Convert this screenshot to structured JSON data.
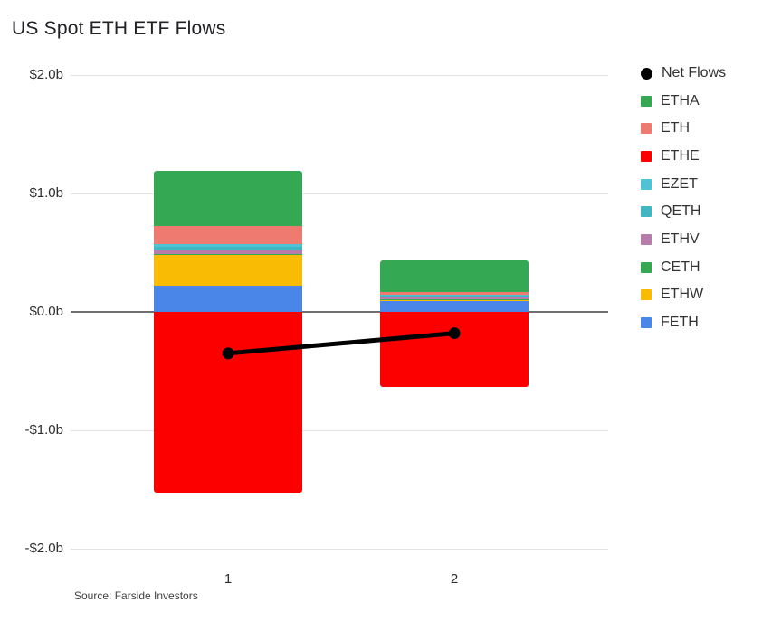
{
  "title": "US Spot ETH ETF Flows",
  "source": "Source: Farside Investors",
  "colors": {
    "background": "#ffffff",
    "gridline": "#e3e3e3",
    "zero_line": "#6f6f6f",
    "net_flows": "#000000",
    "ETHA": "#34a853",
    "ETH": "#ef7b70",
    "ETHE": "#fc0000",
    "EZET": "#4ec3d3",
    "QETH": "#41b7c4",
    "ETHV": "#b87cab",
    "CETH": "#34a853",
    "ETHW": "#fabb05",
    "FETH": "#4a85e8"
  },
  "chart_data": {
    "type": "bar",
    "subtype": "stacked-bars-with-net-line",
    "title": "US Spot ETH ETF Flows",
    "categories": [
      "1",
      "2"
    ],
    "series": [
      {
        "name": "ETHA",
        "color": "#34a853",
        "values": [
          0.47,
          0.27
        ]
      },
      {
        "name": "ETH",
        "color": "#ef7b70",
        "values": [
          0.15,
          0.025
        ]
      },
      {
        "name": "ETHE",
        "color": "#fc0000",
        "values": [
          -1.53,
          -0.63
        ]
      },
      {
        "name": "EZET",
        "color": "#4ec3d3",
        "values": [
          0.027,
          0.008
        ]
      },
      {
        "name": "QETH",
        "color": "#41b7c4",
        "values": [
          0.027,
          0.008
        ]
      },
      {
        "name": "ETHV",
        "color": "#b87cab",
        "values": [
          0.031,
          0.019
        ]
      },
      {
        "name": "CETH",
        "color": "#34a853",
        "values": [
          0.008,
          0.004
        ]
      },
      {
        "name": "ETHW",
        "color": "#fabb05",
        "values": [
          0.26,
          0.015
        ]
      },
      {
        "name": "FETH",
        "color": "#4a85e8",
        "values": [
          0.22,
          0.088
        ]
      }
    ],
    "net_flows": {
      "name": "Net Flows",
      "color": "#000000",
      "values": [
        -0.35,
        -0.18
      ]
    },
    "stack_order_bottom_up": [
      "FETH",
      "ETHW",
      "CETH",
      "ETHV",
      "QETH",
      "EZET",
      "ETH",
      "ETHA",
      "ETHE"
    ],
    "xlabel": "",
    "ylabel": "",
    "ylim": [
      -2.0,
      2.0
    ],
    "yticks": [
      {
        "label": "$2.0b",
        "value": 2
      },
      {
        "label": "$1.0b",
        "value": 1
      },
      {
        "label": "$0.0b",
        "value": 0
      },
      {
        "label": "-$1.0b",
        "value": -1
      },
      {
        "label": "-$2.0b",
        "value": -2
      }
    ],
    "grid": true,
    "legend_position": "right",
    "legend_order": [
      "Net Flows",
      "ETHA",
      "ETH",
      "ETHE",
      "EZET",
      "QETH",
      "ETHV",
      "CETH",
      "ETHW",
      "FETH"
    ]
  }
}
